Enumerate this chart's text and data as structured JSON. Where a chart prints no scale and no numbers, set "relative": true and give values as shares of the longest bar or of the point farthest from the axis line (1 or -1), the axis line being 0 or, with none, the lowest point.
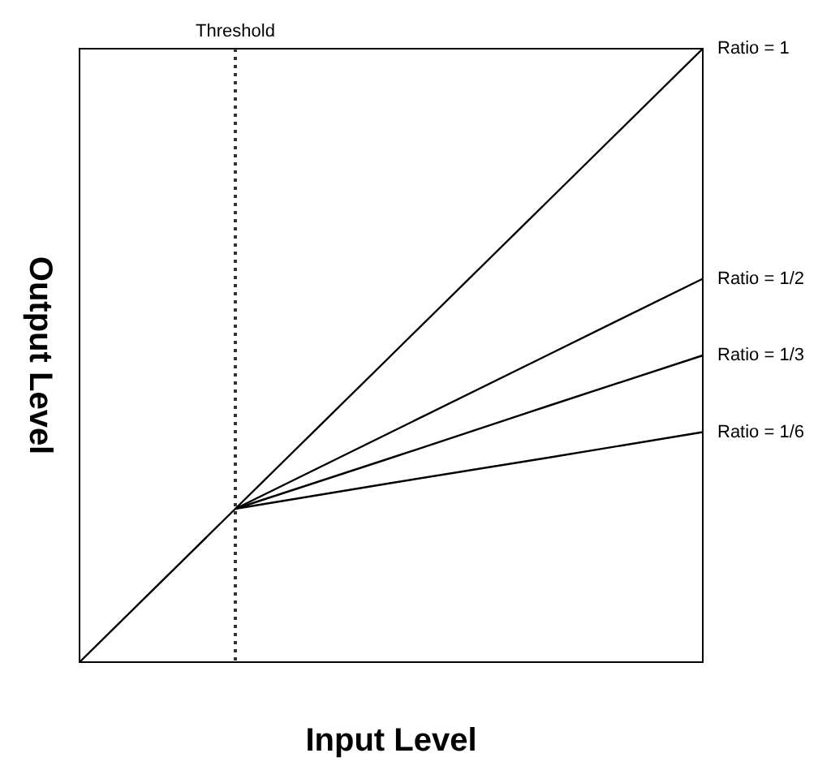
{
  "chart_data": {
    "type": "line",
    "relative": true,
    "xlabel": "Input Level",
    "ylabel": "Output Level",
    "categories": [
      null,
      null,
      null,
      null,
      null
    ],
    "marker": "none",
    "line_style": "solid",
    "series": [
      {
        "name": "Ratio = 1",
        "color": "#000000",
        "values": [
          0,
          0.25,
          0.5,
          0.75,
          1
        ]
      },
      {
        "name": "Ratio = 1/2",
        "color": "#000000",
        "values": [
          null,
          0.25,
          0.375,
          0.5,
          0.625
        ]
      },
      {
        "name": "Ratio = 1/3",
        "color": "#000000",
        "values": [
          null,
          0.25,
          0.333,
          0.417,
          0.5
        ]
      },
      {
        "name": "Ratio = 1/6",
        "color": "#000000",
        "values": [
          null,
          0.25,
          0.292,
          0.333,
          0.375
        ]
      }
    ],
    "ref_lines": [
      {
        "axis": "x",
        "label": "Threshold",
        "line_style": "dotted",
        "color": "#333333"
      }
    ]
  }
}
